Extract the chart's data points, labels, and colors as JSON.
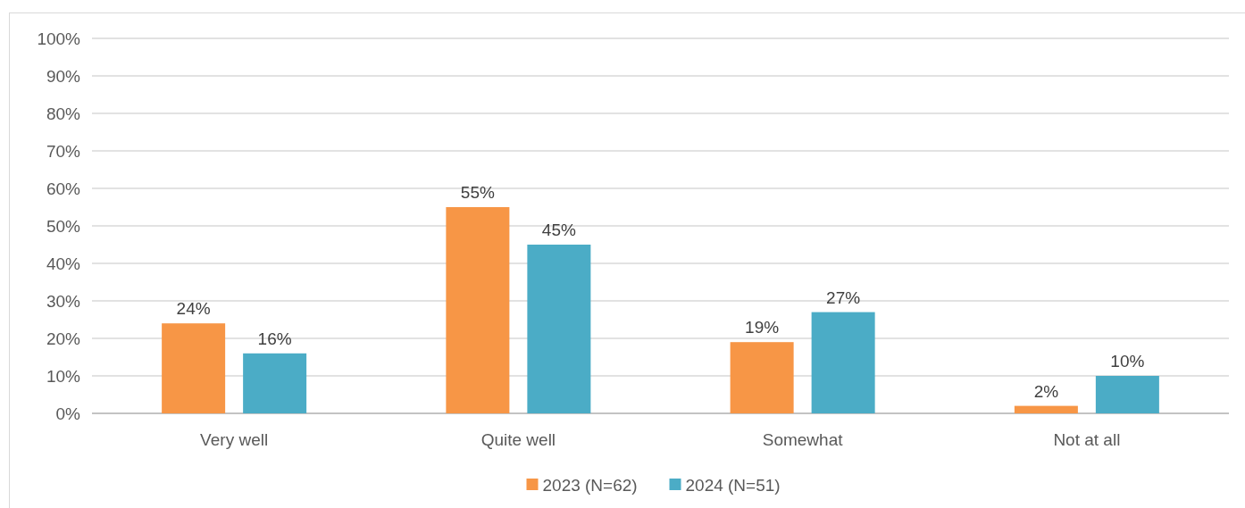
{
  "chart_data": {
    "type": "bar",
    "categories": [
      "Very well",
      "Quite well",
      "Somewhat",
      "Not at all"
    ],
    "series": [
      {
        "name": "2023 (N=62)",
        "color": "#f79646",
        "values": [
          24,
          55,
          19,
          2
        ]
      },
      {
        "name": "2024 (N=51)",
        "color": "#4bacc6",
        "values": [
          16,
          45,
          27,
          10
        ]
      }
    ],
    "ylim": [
      0,
      100
    ],
    "yticks": [
      {
        "value": 0,
        "label": "0%"
      },
      {
        "value": 10,
        "label": "10%"
      },
      {
        "value": 20,
        "label": "20%"
      },
      {
        "value": 30,
        "label": "30%"
      },
      {
        "value": 40,
        "label": "40%"
      },
      {
        "value": 50,
        "label": "50%"
      },
      {
        "value": 60,
        "label": "60%"
      },
      {
        "value": 70,
        "label": "70%"
      },
      {
        "value": 80,
        "label": "80%"
      },
      {
        "value": 90,
        "label": "90%"
      },
      {
        "value": 100,
        "label": "100%"
      }
    ],
    "value_labels": [
      [
        "24%",
        "55%",
        "19%",
        "2%"
      ],
      [
        "16%",
        "45%",
        "27%",
        "10%"
      ]
    ],
    "grid": "y",
    "legend": "bottom"
  }
}
